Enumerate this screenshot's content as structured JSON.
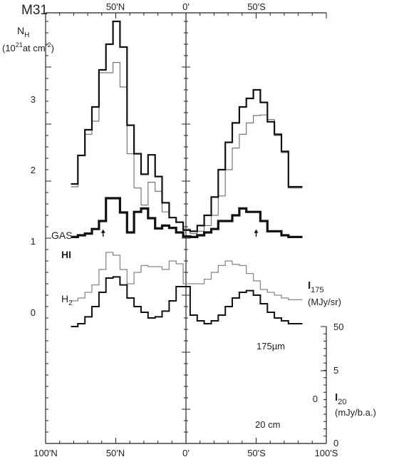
{
  "chart_data": {
    "type": "line",
    "title": "M31",
    "x_axis": {
      "range": [
        -100,
        100
      ],
      "ticks_bottom": [
        "100'N",
        "50'N",
        "0'",
        "50'S",
        "100'S"
      ],
      "ticks_top": [
        "50'N",
        "0'",
        "50'S"
      ]
    },
    "left_axis": {
      "label_line1": "N",
      "label_sub": "H",
      "label_line2_pre": "(10",
      "label_sup": "21",
      "label_line2_post": "at cm",
      "label_sup2": "-2",
      "label_close": ")",
      "range": [
        -3.6,
        3.95
      ],
      "ticks": [
        "0",
        "1",
        "2",
        "3"
      ]
    },
    "right_upper_axis": {
      "label_main": "I",
      "label_sub": "175",
      "unit": "(MJy/sr)",
      "range": [
        0,
        50
      ],
      "ticks": [
        "0",
        "5",
        "50"
      ]
    },
    "right_lower_axis": {
      "label_main": "I",
      "label_sub": "20",
      "unit": "(mJy/b.a.)",
      "ticks": [
        "0"
      ]
    },
    "annotations": {
      "gas": "GAS",
      "hi": "HI",
      "h2_main": "H",
      "h2_sub": "2",
      "ir": "175µm",
      "radio": "20 cm"
    },
    "arrows_x": [
      -59,
      50
    ],
    "step_width": 5,
    "series": [
      {
        "name": "GAS",
        "color": "#111111",
        "stroke_width": 2.2,
        "x": [
          -82,
          -77,
          -72,
          -67,
          -62,
          -57,
          -52,
          -47,
          -42,
          -37,
          -32,
          -27,
          -22,
          -17,
          -12,
          -7,
          -2,
          3,
          8,
          13,
          18,
          23,
          28,
          33,
          38,
          43,
          48,
          53,
          58,
          63,
          68,
          73,
          78
        ],
        "y": [
          0.95,
          1.45,
          1.9,
          2.3,
          2.95,
          3.4,
          3.8,
          3.35,
          1.98,
          1.48,
          1.12,
          1.46,
          1.08,
          0.62,
          0.36,
          0.28,
          0.14,
          0.12,
          0.22,
          0.4,
          0.72,
          1.2,
          1.68,
          2.02,
          2.3,
          2.45,
          2.6,
          2.38,
          2.04,
          1.82,
          1.52,
          0.9,
          0.9
        ]
      },
      {
        "name": "HI",
        "color": "#777777",
        "stroke_width": 1.2,
        "x": [
          -82,
          -77,
          -72,
          -67,
          -62,
          -57,
          -52,
          -47,
          -42,
          -37,
          -32,
          -27,
          -22,
          -17,
          -12,
          -7,
          -2,
          3,
          8,
          13,
          18,
          23,
          28,
          33,
          38,
          43,
          48,
          53,
          58,
          63,
          68,
          73,
          78
        ],
        "y": [
          0.9,
          1.45,
          1.82,
          2.05,
          2.9,
          2.9,
          3.08,
          2.65,
          1.48,
          0.88,
          0.58,
          0.98,
          0.82,
          0.46,
          0.36,
          0.28,
          0.16,
          0.08,
          0.12,
          0.22,
          0.4,
          0.74,
          1.2,
          1.58,
          1.82,
          2.02,
          2.15,
          2.16,
          2.08,
          1.8,
          1.5,
          0.88,
          0.88
        ]
      },
      {
        "name": "H2",
        "color": "#111111",
        "stroke_width": 3.2,
        "x": [
          -82,
          -77,
          -72,
          -67,
          -62,
          -57,
          -52,
          -47,
          -42,
          -37,
          -32,
          -27,
          -22,
          -17,
          -12,
          -7,
          -2,
          3,
          8,
          13,
          18,
          23,
          28,
          33,
          38,
          43,
          48,
          53,
          58,
          63,
          68,
          73,
          78
        ],
        "y": [
          0.02,
          0.05,
          0.08,
          0.16,
          0.3,
          0.7,
          0.7,
          0.45,
          0.1,
          0.46,
          0.52,
          0.35,
          0.17,
          0.22,
          0.18,
          0.1,
          0.03,
          0.02,
          0.05,
          0.1,
          0.16,
          0.3,
          0.3,
          0.4,
          0.52,
          0.46,
          0.46,
          0.3,
          0.12,
          0.12,
          0.05,
          0.02,
          0.02
        ]
      },
      {
        "name": "175µm",
        "color": "#888888",
        "stroke_width": 1.3,
        "x": [
          -82,
          -77,
          -72,
          -67,
          -62,
          -57,
          -52,
          -47,
          -42,
          -37,
          -32,
          -27,
          -22,
          -17,
          -12,
          -7,
          -2,
          3,
          8,
          13,
          18,
          23,
          28,
          33,
          38,
          43,
          48,
          53,
          58,
          63,
          68,
          73,
          78
        ],
        "y": [
          -1.1,
          -1.05,
          -0.95,
          -0.82,
          -0.55,
          -0.25,
          -0.3,
          -0.55,
          -0.8,
          -0.6,
          -0.48,
          -0.5,
          -0.5,
          -0.55,
          -0.4,
          -0.45,
          -0.8,
          -0.8,
          -0.8,
          -0.72,
          -0.6,
          -0.48,
          -0.4,
          -0.46,
          -0.48,
          -0.62,
          -0.75,
          -0.9,
          -0.95,
          -1.0,
          -1.05,
          -1.08,
          -1.08
        ]
      },
      {
        "name": "20 cm",
        "color": "#111111",
        "stroke_width": 2.0,
        "x": [
          -82,
          -77,
          -72,
          -67,
          -62,
          -57,
          -52,
          -47,
          -42,
          -37,
          -32,
          -27,
          -22,
          -17,
          -12,
          -7,
          -2,
          3,
          8,
          13,
          18,
          23,
          28,
          33,
          38,
          43,
          48,
          53,
          58,
          63,
          68,
          73,
          78
        ],
        "y": [
          -1.55,
          -1.5,
          -1.38,
          -1.2,
          -0.95,
          -0.7,
          -0.68,
          -0.82,
          -1.05,
          -1.2,
          -1.3,
          -1.4,
          -1.38,
          -1.28,
          -1.1,
          -0.85,
          -0.85,
          -1.35,
          -1.45,
          -1.5,
          -1.45,
          -1.35,
          -1.2,
          -1.05,
          -0.95,
          -0.92,
          -1.0,
          -1.15,
          -1.3,
          -1.4,
          -1.45,
          -1.5,
          -1.5
        ]
      }
    ]
  }
}
